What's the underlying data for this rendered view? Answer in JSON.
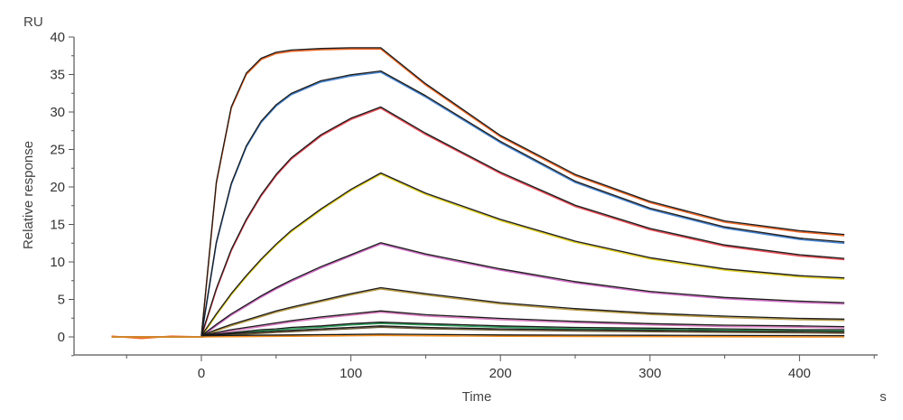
{
  "chart_data": {
    "type": "line",
    "title": "",
    "ylabel": "Relative response",
    "y_unit": "RU",
    "xlabel": "Time",
    "x_unit": "s",
    "xlim": [
      -65,
      435
    ],
    "ylim": [
      -2.5,
      40
    ],
    "x_ticks": [
      0,
      100,
      200,
      300,
      400
    ],
    "y_ticks": [
      0,
      5,
      10,
      15,
      20,
      25,
      30,
      35,
      40
    ],
    "grid": false,
    "legend": "none",
    "association_end": 120,
    "series": [
      {
        "color": "#f06a2a",
        "fit_color": "#1a1a1a",
        "values": [
          [
            -60,
            0.1
          ],
          [
            -40,
            -0.2
          ],
          [
            -20,
            0.1
          ],
          [
            0,
            0
          ],
          [
            10,
            20.5
          ],
          [
            20,
            30.5
          ],
          [
            30,
            35
          ],
          [
            40,
            37
          ],
          [
            50,
            37.8
          ],
          [
            60,
            38.1
          ],
          [
            80,
            38.3
          ],
          [
            100,
            38.4
          ],
          [
            120,
            38.4
          ],
          [
            150,
            33.6
          ],
          [
            200,
            26.7
          ],
          [
            250,
            21.5
          ],
          [
            300,
            17.9
          ],
          [
            350,
            15.3
          ],
          [
            400,
            14.0
          ],
          [
            430,
            13.5
          ]
        ]
      },
      {
        "color": "#4a86d0",
        "fit_color": "#1a1a1a",
        "values": [
          [
            -60,
            0
          ],
          [
            -30,
            0
          ],
          [
            0,
            0
          ],
          [
            10,
            12.5
          ],
          [
            20,
            20.3
          ],
          [
            30,
            25.3
          ],
          [
            40,
            28.6
          ],
          [
            50,
            30.8
          ],
          [
            60,
            32.3
          ],
          [
            80,
            34.0
          ],
          [
            100,
            34.8
          ],
          [
            120,
            35.3
          ],
          [
            150,
            32.0
          ],
          [
            200,
            25.9
          ],
          [
            250,
            20.6
          ],
          [
            300,
            17.0
          ],
          [
            350,
            14.5
          ],
          [
            400,
            13.0
          ],
          [
            430,
            12.5
          ]
        ]
      },
      {
        "color": "#e8505a",
        "fit_color": "#1a1a1a",
        "values": [
          [
            -60,
            0
          ],
          [
            -30,
            0
          ],
          [
            0,
            0
          ],
          [
            10,
            6.3
          ],
          [
            20,
            11.5
          ],
          [
            30,
            15.5
          ],
          [
            40,
            18.8
          ],
          [
            50,
            21.5
          ],
          [
            60,
            23.7
          ],
          [
            80,
            26.8
          ],
          [
            100,
            29.0
          ],
          [
            120,
            30.5
          ],
          [
            150,
            27.0
          ],
          [
            200,
            21.8
          ],
          [
            250,
            17.4
          ],
          [
            300,
            14.3
          ],
          [
            350,
            12.1
          ],
          [
            400,
            10.8
          ],
          [
            430,
            10.3
          ]
        ]
      },
      {
        "color": "#e3d02a",
        "fit_color": "#1a1a1a",
        "values": [
          [
            -60,
            0
          ],
          [
            -30,
            0
          ],
          [
            0,
            0
          ],
          [
            10,
            2.9
          ],
          [
            20,
            5.6
          ],
          [
            30,
            8.0
          ],
          [
            40,
            10.2
          ],
          [
            50,
            12.2
          ],
          [
            60,
            14.0
          ],
          [
            80,
            16.9
          ],
          [
            100,
            19.5
          ],
          [
            120,
            21.7
          ],
          [
            150,
            19.0
          ],
          [
            200,
            15.5
          ],
          [
            250,
            12.6
          ],
          [
            300,
            10.4
          ],
          [
            350,
            8.9
          ],
          [
            400,
            8.0
          ],
          [
            430,
            7.7
          ]
        ]
      },
      {
        "color": "#cf6fc6",
        "fit_color": "#1a1a1a",
        "values": [
          [
            -60,
            0
          ],
          [
            -30,
            0
          ],
          [
            0,
            0
          ],
          [
            10,
            1.5
          ],
          [
            20,
            2.9
          ],
          [
            30,
            4.1
          ],
          [
            40,
            5.3
          ],
          [
            50,
            6.4
          ],
          [
            60,
            7.4
          ],
          [
            80,
            9.2
          ],
          [
            100,
            10.8
          ],
          [
            120,
            12.4
          ],
          [
            150,
            10.9
          ],
          [
            200,
            8.9
          ],
          [
            250,
            7.2
          ],
          [
            300,
            5.9
          ],
          [
            350,
            5.1
          ],
          [
            400,
            4.6
          ],
          [
            430,
            4.4
          ]
        ]
      },
      {
        "color": "#b89b45",
        "fit_color": "#1a1a1a",
        "values": [
          [
            -60,
            0
          ],
          [
            -30,
            0
          ],
          [
            0,
            0
          ],
          [
            10,
            0.8
          ],
          [
            20,
            1.5
          ],
          [
            30,
            2.1
          ],
          [
            40,
            2.7
          ],
          [
            50,
            3.3
          ],
          [
            60,
            3.8
          ],
          [
            80,
            4.7
          ],
          [
            100,
            5.6
          ],
          [
            120,
            6.4
          ],
          [
            150,
            5.6
          ],
          [
            200,
            4.4
          ],
          [
            250,
            3.6
          ],
          [
            300,
            3.0
          ],
          [
            350,
            2.6
          ],
          [
            400,
            2.3
          ],
          [
            430,
            2.2
          ]
        ]
      },
      {
        "color": "#d87ac0",
        "fit_color": "#1a1a1a",
        "values": [
          [
            -60,
            0
          ],
          [
            -30,
            0
          ],
          [
            0,
            0
          ],
          [
            10,
            0.4
          ],
          [
            20,
            0.8
          ],
          [
            30,
            1.1
          ],
          [
            40,
            1.4
          ],
          [
            50,
            1.7
          ],
          [
            60,
            2.0
          ],
          [
            80,
            2.5
          ],
          [
            100,
            2.9
          ],
          [
            120,
            3.3
          ],
          [
            150,
            2.8
          ],
          [
            200,
            2.3
          ],
          [
            250,
            1.9
          ],
          [
            300,
            1.6
          ],
          [
            350,
            1.4
          ],
          [
            400,
            1.3
          ],
          [
            430,
            1.2
          ]
        ]
      },
      {
        "color": "#2f9e5a",
        "fit_color": "#1a1a1a",
        "values": [
          [
            -60,
            0
          ],
          [
            -30,
            0
          ],
          [
            0,
            0
          ],
          [
            10,
            0.2
          ],
          [
            20,
            0.4
          ],
          [
            30,
            0.6
          ],
          [
            40,
            0.8
          ],
          [
            50,
            0.9
          ],
          [
            60,
            1.1
          ],
          [
            80,
            1.3
          ],
          [
            100,
            1.6
          ],
          [
            120,
            1.8
          ],
          [
            150,
            1.6
          ],
          [
            200,
            1.3
          ],
          [
            250,
            1.1
          ],
          [
            300,
            1.0
          ],
          [
            350,
            0.9
          ],
          [
            400,
            0.8
          ],
          [
            430,
            0.8
          ]
        ]
      },
      {
        "color": "#6b5a3a",
        "fit_color": "#1a1a1a",
        "values": [
          [
            -60,
            0
          ],
          [
            -30,
            0
          ],
          [
            0,
            0
          ],
          [
            10,
            0.1
          ],
          [
            20,
            0.25
          ],
          [
            30,
            0.4
          ],
          [
            40,
            0.5
          ],
          [
            50,
            0.6
          ],
          [
            60,
            0.7
          ],
          [
            80,
            0.9
          ],
          [
            100,
            1.1
          ],
          [
            120,
            1.3
          ],
          [
            150,
            1.1
          ],
          [
            200,
            0.9
          ],
          [
            250,
            0.8
          ],
          [
            300,
            0.7
          ],
          [
            350,
            0.6
          ],
          [
            400,
            0.55
          ],
          [
            430,
            0.5
          ]
        ]
      },
      {
        "color": "#f08a1a",
        "fit_color": "#1a1a1a",
        "values": [
          [
            -60,
            0
          ],
          [
            -30,
            0
          ],
          [
            0,
            0
          ],
          [
            30,
            0.05
          ],
          [
            60,
            0.1
          ],
          [
            90,
            0.15
          ],
          [
            120,
            0.2
          ],
          [
            200,
            0.1
          ],
          [
            300,
            0.05
          ],
          [
            430,
            0.0
          ]
        ]
      }
    ]
  }
}
